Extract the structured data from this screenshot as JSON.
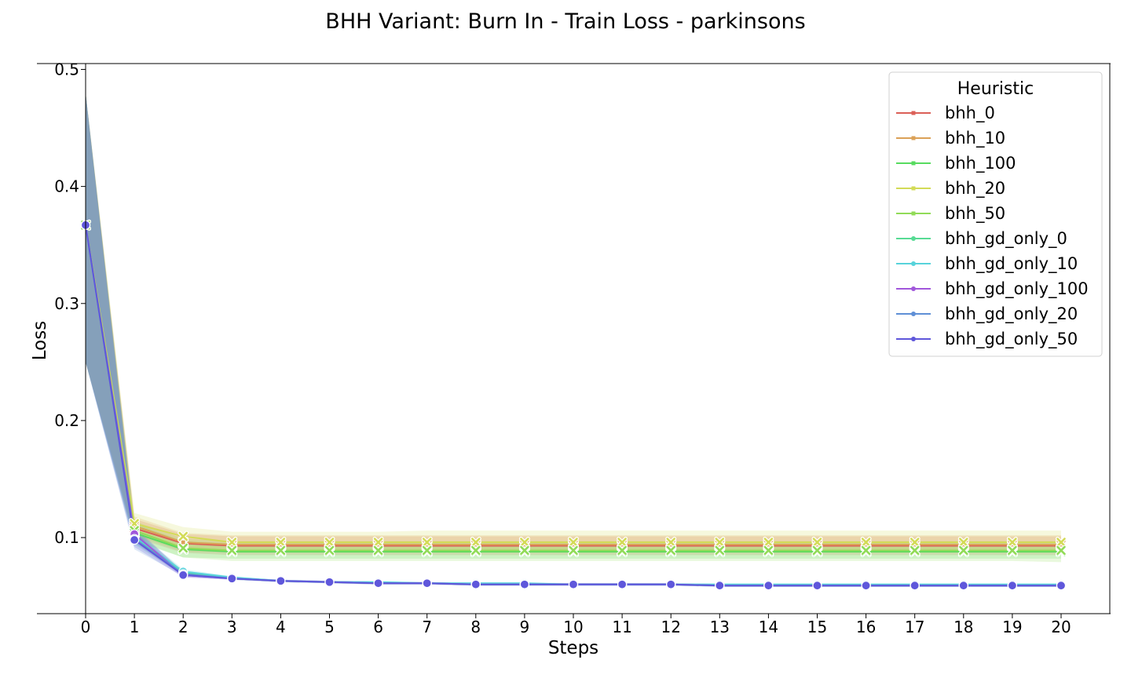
{
  "chart_data": {
    "type": "line",
    "title": "BHH Variant: Burn In - Train Loss - parkinsons",
    "xlabel": "Steps",
    "ylabel": "Loss",
    "x": [
      0,
      1,
      2,
      3,
      4,
      5,
      6,
      7,
      8,
      9,
      10,
      11,
      12,
      13,
      14,
      15,
      16,
      17,
      18,
      19,
      20
    ],
    "xticks": [
      "0",
      "1",
      "2",
      "3",
      "4",
      "5",
      "6",
      "7",
      "8",
      "9",
      "10",
      "11",
      "12",
      "13",
      "14",
      "15",
      "16",
      "17",
      "18",
      "19",
      "20"
    ],
    "yticks": [
      "0.1",
      "0.2",
      "0.3",
      "0.4",
      "0.5"
    ],
    "ylim": [
      0.035,
      0.505
    ],
    "xlim": [
      -1,
      21
    ],
    "grid": false,
    "legend": {
      "title": "Heuristic",
      "position": "top-right"
    },
    "series": [
      {
        "name": "bhh_0",
        "color": "#db5f57",
        "marker": "x",
        "values": [
          0.367,
          0.108,
          0.095,
          0.093,
          0.093,
          0.093,
          0.093,
          0.093,
          0.093,
          0.093,
          0.093,
          0.093,
          0.093,
          0.093,
          0.093,
          0.093,
          0.093,
          0.093,
          0.093,
          0.093,
          0.093
        ],
        "band": [
          [
            0.25,
            0.48
          ],
          [
            0.1,
            0.116
          ],
          [
            0.087,
            0.103
          ],
          [
            0.085,
            0.101
          ],
          [
            0.085,
            0.101
          ],
          [
            0.085,
            0.101
          ],
          [
            0.085,
            0.101
          ],
          [
            0.085,
            0.101
          ],
          [
            0.085,
            0.101
          ],
          [
            0.085,
            0.101
          ],
          [
            0.085,
            0.101
          ],
          [
            0.085,
            0.101
          ],
          [
            0.085,
            0.101
          ],
          [
            0.085,
            0.101
          ],
          [
            0.085,
            0.101
          ],
          [
            0.085,
            0.101
          ],
          [
            0.085,
            0.101
          ],
          [
            0.085,
            0.101
          ],
          [
            0.085,
            0.101
          ],
          [
            0.085,
            0.101
          ],
          [
            0.085,
            0.101
          ]
        ]
      },
      {
        "name": "bhh_10",
        "color": "#dba157",
        "marker": "x",
        "values": [
          0.367,
          0.11,
          0.096,
          0.094,
          0.094,
          0.094,
          0.094,
          0.094,
          0.094,
          0.094,
          0.094,
          0.094,
          0.094,
          0.094,
          0.094,
          0.094,
          0.094,
          0.094,
          0.094,
          0.094,
          0.094
        ],
        "band": [
          [
            0.25,
            0.48
          ],
          [
            0.102,
            0.118
          ],
          [
            0.088,
            0.104
          ],
          [
            0.087,
            0.102
          ],
          [
            0.087,
            0.102
          ],
          [
            0.087,
            0.102
          ],
          [
            0.087,
            0.102
          ],
          [
            0.087,
            0.102
          ],
          [
            0.087,
            0.102
          ],
          [
            0.087,
            0.102
          ],
          [
            0.087,
            0.102
          ],
          [
            0.087,
            0.102
          ],
          [
            0.087,
            0.102
          ],
          [
            0.087,
            0.102
          ],
          [
            0.087,
            0.102
          ],
          [
            0.087,
            0.102
          ],
          [
            0.087,
            0.102
          ],
          [
            0.087,
            0.102
          ],
          [
            0.087,
            0.102
          ],
          [
            0.087,
            0.102
          ],
          [
            0.087,
            0.102
          ]
        ]
      },
      {
        "name": "bhh_100",
        "color": "#57db5f",
        "marker": "x",
        "values": [
          0.367,
          0.104,
          0.09,
          0.088,
          0.088,
          0.088,
          0.088,
          0.088,
          0.088,
          0.088,
          0.088,
          0.088,
          0.088,
          0.088,
          0.088,
          0.088,
          0.088,
          0.088,
          0.088,
          0.088,
          0.088
        ],
        "band": [
          [
            0.25,
            0.48
          ],
          [
            0.097,
            0.112
          ],
          [
            0.083,
            0.097
          ],
          [
            0.082,
            0.095
          ],
          [
            0.082,
            0.095
          ],
          [
            0.082,
            0.095
          ],
          [
            0.082,
            0.095
          ],
          [
            0.082,
            0.095
          ],
          [
            0.082,
            0.095
          ],
          [
            0.082,
            0.095
          ],
          [
            0.082,
            0.095
          ],
          [
            0.082,
            0.095
          ],
          [
            0.082,
            0.095
          ],
          [
            0.082,
            0.095
          ],
          [
            0.082,
            0.095
          ],
          [
            0.082,
            0.095
          ],
          [
            0.082,
            0.095
          ],
          [
            0.082,
            0.095
          ],
          [
            0.082,
            0.095
          ],
          [
            0.082,
            0.095
          ],
          [
            0.082,
            0.095
          ]
        ]
      },
      {
        "name": "bhh_20",
        "color": "#d3db57",
        "marker": "x",
        "values": [
          0.367,
          0.112,
          0.101,
          0.096,
          0.096,
          0.096,
          0.096,
          0.096,
          0.096,
          0.096,
          0.096,
          0.096,
          0.096,
          0.096,
          0.096,
          0.096,
          0.096,
          0.096,
          0.096,
          0.096,
          0.096
        ],
        "band": [
          [
            0.25,
            0.48
          ],
          [
            0.104,
            0.121
          ],
          [
            0.092,
            0.109
          ],
          [
            0.087,
            0.105
          ],
          [
            0.087,
            0.105
          ],
          [
            0.087,
            0.105
          ],
          [
            0.087,
            0.105
          ],
          [
            0.087,
            0.106
          ],
          [
            0.087,
            0.106
          ],
          [
            0.087,
            0.106
          ],
          [
            0.087,
            0.106
          ],
          [
            0.087,
            0.106
          ],
          [
            0.087,
            0.106
          ],
          [
            0.087,
            0.106
          ],
          [
            0.087,
            0.106
          ],
          [
            0.087,
            0.106
          ],
          [
            0.087,
            0.106
          ],
          [
            0.087,
            0.106
          ],
          [
            0.087,
            0.106
          ],
          [
            0.087,
            0.106
          ],
          [
            0.087,
            0.106
          ]
        ]
      },
      {
        "name": "bhh_50",
        "color": "#91db57",
        "marker": "x",
        "values": [
          0.367,
          0.106,
          0.091,
          0.089,
          0.089,
          0.089,
          0.089,
          0.089,
          0.089,
          0.089,
          0.089,
          0.089,
          0.089,
          0.089,
          0.089,
          0.089,
          0.089,
          0.089,
          0.089,
          0.089,
          0.089
        ],
        "band": [
          [
            0.25,
            0.48
          ],
          [
            0.098,
            0.114
          ],
          [
            0.083,
            0.099
          ],
          [
            0.08,
            0.097
          ],
          [
            0.08,
            0.097
          ],
          [
            0.08,
            0.097
          ],
          [
            0.08,
            0.097
          ],
          [
            0.08,
            0.097
          ],
          [
            0.08,
            0.097
          ],
          [
            0.08,
            0.097
          ],
          [
            0.08,
            0.097
          ],
          [
            0.08,
            0.097
          ],
          [
            0.08,
            0.097
          ],
          [
            0.08,
            0.097
          ],
          [
            0.08,
            0.097
          ],
          [
            0.08,
            0.097
          ],
          [
            0.08,
            0.097
          ],
          [
            0.08,
            0.097
          ],
          [
            0.08,
            0.097
          ],
          [
            0.08,
            0.097
          ],
          [
            0.079,
            0.097
          ]
        ]
      },
      {
        "name": "bhh_gd_only_0",
        "color": "#57db94",
        "marker": "o",
        "values": [
          0.367,
          0.1,
          0.07,
          0.065,
          0.063,
          0.062,
          0.061,
          0.061,
          0.06,
          0.06,
          0.06,
          0.06,
          0.06,
          0.059,
          0.059,
          0.059,
          0.059,
          0.059,
          0.059,
          0.059,
          0.059
        ],
        "band": [
          [
            0.25,
            0.48
          ],
          [
            0.094,
            0.106
          ],
          [
            0.068,
            0.072
          ],
          [
            0.064,
            0.066
          ],
          [
            0.062,
            0.064
          ],
          [
            0.061,
            0.063
          ],
          [
            0.06,
            0.062
          ],
          [
            0.06,
            0.062
          ],
          [
            0.059,
            0.061
          ],
          [
            0.059,
            0.061
          ],
          [
            0.059,
            0.061
          ],
          [
            0.059,
            0.061
          ],
          [
            0.059,
            0.061
          ],
          [
            0.058,
            0.06
          ],
          [
            0.058,
            0.06
          ],
          [
            0.058,
            0.06
          ],
          [
            0.058,
            0.06
          ],
          [
            0.058,
            0.06
          ],
          [
            0.058,
            0.06
          ],
          [
            0.058,
            0.06
          ],
          [
            0.058,
            0.06
          ]
        ]
      },
      {
        "name": "bhh_gd_only_10",
        "color": "#57d3db",
        "marker": "o",
        "values": [
          0.367,
          0.101,
          0.071,
          0.066,
          0.063,
          0.062,
          0.062,
          0.061,
          0.061,
          0.061,
          0.06,
          0.06,
          0.06,
          0.06,
          0.06,
          0.06,
          0.06,
          0.06,
          0.06,
          0.06,
          0.06
        ],
        "band": [
          [
            0.25,
            0.48
          ],
          [
            0.095,
            0.107
          ],
          [
            0.069,
            0.073
          ],
          [
            0.065,
            0.067
          ],
          [
            0.062,
            0.064
          ],
          [
            0.061,
            0.063
          ],
          [
            0.061,
            0.063
          ],
          [
            0.06,
            0.062
          ],
          [
            0.06,
            0.062
          ],
          [
            0.06,
            0.062
          ],
          [
            0.059,
            0.061
          ],
          [
            0.059,
            0.061
          ],
          [
            0.059,
            0.061
          ],
          [
            0.059,
            0.061
          ],
          [
            0.059,
            0.061
          ],
          [
            0.059,
            0.061
          ],
          [
            0.059,
            0.061
          ],
          [
            0.059,
            0.061
          ],
          [
            0.059,
            0.061
          ],
          [
            0.059,
            0.061
          ],
          [
            0.059,
            0.061
          ]
        ]
      },
      {
        "name": "bhh_gd_only_100",
        "color": "#a157db",
        "marker": "o",
        "values": [
          0.367,
          0.103,
          0.068,
          0.065,
          0.063,
          0.062,
          0.061,
          0.061,
          0.06,
          0.06,
          0.06,
          0.06,
          0.06,
          0.059,
          0.059,
          0.059,
          0.059,
          0.059,
          0.059,
          0.059,
          0.059
        ],
        "band": [
          [
            0.25,
            0.48
          ],
          [
            0.096,
            0.11
          ],
          [
            0.066,
            0.07
          ],
          [
            0.064,
            0.066
          ],
          [
            0.062,
            0.064
          ],
          [
            0.061,
            0.063
          ],
          [
            0.06,
            0.062
          ],
          [
            0.06,
            0.062
          ],
          [
            0.059,
            0.061
          ],
          [
            0.059,
            0.061
          ],
          [
            0.059,
            0.061
          ],
          [
            0.059,
            0.061
          ],
          [
            0.059,
            0.061
          ],
          [
            0.058,
            0.06
          ],
          [
            0.058,
            0.06
          ],
          [
            0.058,
            0.06
          ],
          [
            0.058,
            0.06
          ],
          [
            0.058,
            0.06
          ],
          [
            0.058,
            0.06
          ],
          [
            0.058,
            0.06
          ],
          [
            0.058,
            0.06
          ]
        ]
      },
      {
        "name": "bhh_gd_only_20",
        "color": "#5f8fd6",
        "marker": "o",
        "values": [
          0.367,
          0.099,
          0.069,
          0.065,
          0.063,
          0.062,
          0.061,
          0.061,
          0.06,
          0.06,
          0.06,
          0.06,
          0.06,
          0.059,
          0.059,
          0.059,
          0.059,
          0.059,
          0.059,
          0.059,
          0.059
        ],
        "band": [
          [
            0.25,
            0.48
          ],
          [
            0.09,
            0.108
          ],
          [
            0.067,
            0.071
          ],
          [
            0.064,
            0.066
          ],
          [
            0.062,
            0.064
          ],
          [
            0.061,
            0.063
          ],
          [
            0.06,
            0.062
          ],
          [
            0.06,
            0.062
          ],
          [
            0.059,
            0.061
          ],
          [
            0.059,
            0.061
          ],
          [
            0.059,
            0.061
          ],
          [
            0.059,
            0.061
          ],
          [
            0.059,
            0.061
          ],
          [
            0.058,
            0.06
          ],
          [
            0.058,
            0.06
          ],
          [
            0.058,
            0.06
          ],
          [
            0.058,
            0.06
          ],
          [
            0.058,
            0.06
          ],
          [
            0.058,
            0.06
          ],
          [
            0.058,
            0.06
          ],
          [
            0.058,
            0.06
          ]
        ]
      },
      {
        "name": "bhh_gd_only_50",
        "color": "#5f57db",
        "marker": "o",
        "values": [
          0.367,
          0.098,
          0.068,
          0.065,
          0.063,
          0.062,
          0.061,
          0.061,
          0.06,
          0.06,
          0.06,
          0.06,
          0.06,
          0.059,
          0.059,
          0.059,
          0.059,
          0.059,
          0.059,
          0.059,
          0.059
        ],
        "band": [
          [
            0.25,
            0.48
          ],
          [
            0.092,
            0.105
          ],
          [
            0.066,
            0.07
          ],
          [
            0.064,
            0.066
          ],
          [
            0.062,
            0.064
          ],
          [
            0.061,
            0.063
          ],
          [
            0.06,
            0.062
          ],
          [
            0.06,
            0.062
          ],
          [
            0.059,
            0.061
          ],
          [
            0.059,
            0.061
          ],
          [
            0.059,
            0.061
          ],
          [
            0.059,
            0.061
          ],
          [
            0.059,
            0.061
          ],
          [
            0.058,
            0.06
          ],
          [
            0.058,
            0.06
          ],
          [
            0.058,
            0.06
          ],
          [
            0.058,
            0.06
          ],
          [
            0.058,
            0.06
          ],
          [
            0.058,
            0.06
          ],
          [
            0.058,
            0.06
          ],
          [
            0.058,
            0.06
          ]
        ]
      }
    ]
  }
}
